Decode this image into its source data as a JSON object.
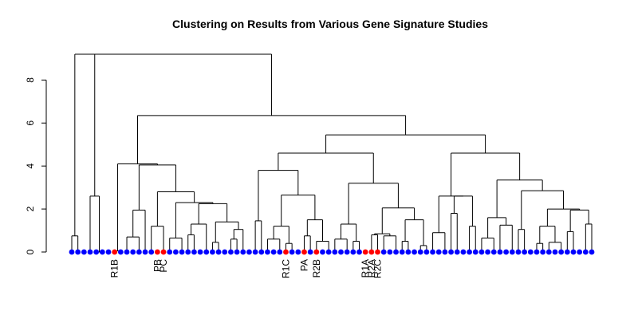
{
  "chart_data": {
    "type": "dendrogram",
    "title": "Clustering on Results from Various Gene Signature Studies",
    "xlabel": "",
    "ylabel": "",
    "ylim": [
      0,
      9.2
    ],
    "yticks": [
      0,
      2,
      4,
      6,
      8
    ],
    "grid": false,
    "leaf_count": 86,
    "leaf_colors": {
      "default": "#0000ff",
      "highlighted": "#ff0000"
    },
    "leaf_color_names": {
      "default": "blue",
      "highlighted": "red"
    },
    "highlighted_leaves": [
      {
        "leaf": 7,
        "label": "R1B"
      },
      {
        "leaf": 14,
        "label": "PB"
      },
      {
        "leaf": 15,
        "label": "PC"
      },
      {
        "leaf": 35,
        "label": "R1C"
      },
      {
        "leaf": 38,
        "label": "PA"
      },
      {
        "leaf": 40,
        "label": "R2B"
      },
      {
        "leaf": 48,
        "label": "R1A"
      },
      {
        "leaf": 49,
        "label": "R2A"
      },
      {
        "leaf": 50,
        "label": "R2C"
      }
    ],
    "merges": [
      [
        0,
        1,
        0.75
      ],
      [
        2,
        3,
        2.6
      ],
      [
        7,
        8,
        0.7
      ],
      [
        11,
        12,
        1.2
      ],
      [
        14,
        15,
        0.65
      ],
      [
        16,
        17,
        0.3
      ],
      [
        18,
        19,
        0.8
      ],
      [
        23,
        24,
        0.6
      ],
      [
        34,
        35,
        0.6
      ],
      [
        37,
        38,
        0.4
      ],
      [
        40,
        41,
        0.75
      ],
      [
        43,
        44,
        0.35
      ],
      [
        45,
        46,
        0.5
      ],
      [
        49,
        50,
        0.3
      ],
      [
        53,
        54,
        0.5
      ],
      [
        57,
        58,
        0.9
      ],
      [
        61,
        62,
        1.2
      ],
      [
        63,
        64,
        0.6
      ],
      [
        66,
        67,
        1.1
      ],
      [
        69,
        70,
        0.2
      ],
      [
        71,
        72,
        0.4
      ],
      [
        74,
        75,
        0.5
      ],
      [
        78,
        79,
        1.3
      ]
    ],
    "top_merge_height": 9.2,
    "major_cluster_heights": [
      6.35,
      5.45,
      4.6,
      4.3,
      3.8,
      3.35,
      2.85,
      2.65,
      2.0
    ]
  }
}
